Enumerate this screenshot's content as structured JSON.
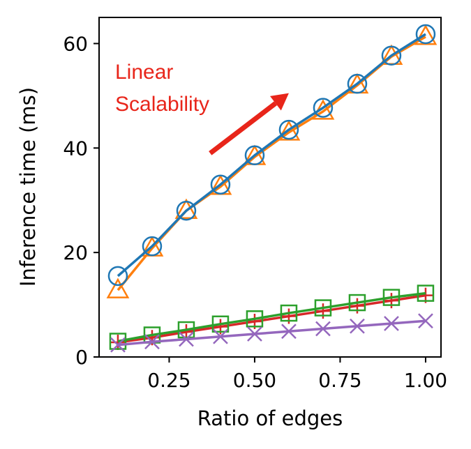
{
  "chart_data": {
    "type": "line",
    "xlabel": "Ratio of edges",
    "ylabel": "Inference time (ms)",
    "xlim": [
      0.045,
      1.045
    ],
    "ylim": [
      0,
      65
    ],
    "xticks": [
      0.25,
      0.5,
      0.75,
      1.0
    ],
    "xtick_labels": [
      "0.25",
      "0.50",
      "0.75",
      "1.00"
    ],
    "yticks": [
      0,
      20,
      40,
      60
    ],
    "ytick_labels": [
      "0",
      "20",
      "40",
      "60"
    ],
    "grid": false,
    "legend": "none",
    "x": [
      0.1,
      0.2,
      0.3,
      0.4,
      0.5,
      0.6,
      0.7,
      0.8,
      0.9,
      1.0
    ],
    "series": [
      {
        "marker": "triangle",
        "color": "#ff7f0e",
        "values": [
          12.8,
          20.8,
          28.0,
          32.6,
          38.3,
          43.0,
          47.0,
          52.0,
          57.5,
          61.3
        ]
      },
      {
        "marker": "circle",
        "color": "#1f77b4",
        "values": [
          15.5,
          21.2,
          28.0,
          33.0,
          38.6,
          43.5,
          47.7,
          52.3,
          57.7,
          61.8
        ]
      },
      {
        "marker": "plus",
        "color": "#d62728",
        "values": [
          2.8,
          3.7,
          4.8,
          5.8,
          6.8,
          7.8,
          8.8,
          9.8,
          10.8,
          11.8
        ]
      },
      {
        "marker": "square",
        "color": "#2ca02c",
        "values": [
          3.0,
          4.2,
          5.2,
          6.3,
          7.3,
          8.4,
          9.4,
          10.4,
          11.4,
          12.2
        ]
      },
      {
        "marker": "x",
        "color": "#9467bd",
        "values": [
          2.3,
          2.9,
          3.4,
          3.9,
          4.4,
          4.9,
          5.4,
          5.9,
          6.4,
          6.9
        ]
      }
    ],
    "annotations": [
      {
        "text_lines": [
          "Linear",
          "Scalability"
        ],
        "color": "#e8251a",
        "arrow_from": [
          0.37,
          39
        ],
        "arrow_to": [
          0.6,
          50.5
        ]
      }
    ]
  }
}
